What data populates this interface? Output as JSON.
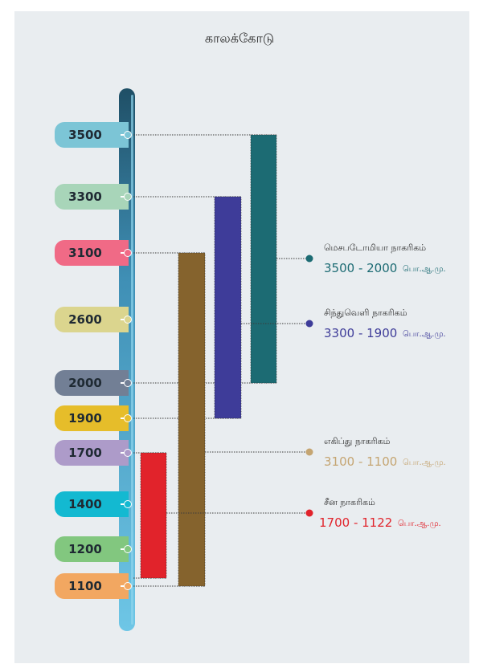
{
  "title": "காலக்கோடு",
  "timeline": {
    "years": [
      {
        "label": "3500",
        "value": 3500,
        "color": "#7cc5d6"
      },
      {
        "label": "3300",
        "value": 3300,
        "color": "#a8d5b9"
      },
      {
        "label": "3100",
        "value": 3100,
        "color": "#f06a86"
      },
      {
        "label": "2600",
        "value": 2600,
        "color": "#dbd58e"
      },
      {
        "label": "2000",
        "value": 2000,
        "color": "#727f95"
      },
      {
        "label": "1900",
        "value": 1900,
        "color": "#e6bd2a"
      },
      {
        "label": "1700",
        "value": 1700,
        "color": "#ad9bc9"
      },
      {
        "label": "1400",
        "value": 1400,
        "color": "#13b9d1"
      },
      {
        "label": "1200",
        "value": 1200,
        "color": "#82c77f"
      },
      {
        "label": "1100",
        "value": 1100,
        "color": "#f2a761"
      }
    ]
  },
  "civilizations": [
    {
      "name": "மெசபடோமியா நாகரிகம்",
      "start": 3500,
      "end": 2000,
      "range": "3500 - 2000",
      "unit": "பொ.ஆ.மு.",
      "bar_color": "#1c6b73",
      "text_color": "#1c6b73",
      "dot_color": "#1c6b73"
    },
    {
      "name": "சிந்துவெளி நாகரிகம்",
      "start": 3300,
      "end": 1900,
      "range": "3300 - 1900",
      "unit": "பொ.ஆ.மு.",
      "bar_color": "#3e3c99",
      "text_color": "#3e3c99",
      "dot_color": "#3e3c99"
    },
    {
      "name": "எகிப்து நாகரிகம்",
      "start": 3100,
      "end": 1100,
      "range": "3100 - 1100",
      "unit": "பொ.ஆ.மு.",
      "bar_color": "#85632d",
      "text_color": "#c5a572",
      "dot_color": "#c5a572"
    },
    {
      "name": "சீன நாகரிகம்",
      "start": 1700,
      "end": 1122,
      "range": "1700 - 1122",
      "unit": "பொ.ஆ.மு.",
      "bar_color": "#e1232b",
      "text_color": "#e1232b",
      "dot_color": "#e1232b"
    }
  ]
}
